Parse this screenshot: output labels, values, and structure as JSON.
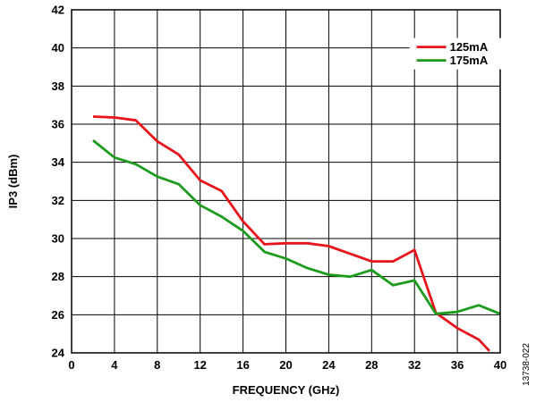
{
  "chart_data": {
    "type": "line",
    "title": "",
    "xlabel": "FREQUENCY (GHz)",
    "ylabel": "IP3 (dBm)",
    "xlim": [
      0,
      40
    ],
    "ylim": [
      24,
      42
    ],
    "xticks": [
      0,
      4,
      8,
      12,
      16,
      20,
      24,
      28,
      32,
      36,
      40
    ],
    "yticks": [
      24,
      26,
      28,
      30,
      32,
      34,
      36,
      38,
      40,
      42
    ],
    "grid": true,
    "legend_position": "top-right",
    "series": [
      {
        "name": "125mA",
        "color": "#e8141b",
        "x": [
          2,
          4,
          6,
          8,
          10,
          12,
          14,
          16,
          18,
          20,
          22,
          24,
          26,
          28,
          30,
          32,
          34,
          36,
          38,
          39
        ],
        "y": [
          36.4,
          36.35,
          36.2,
          35.1,
          34.4,
          33.05,
          32.5,
          30.9,
          29.7,
          29.75,
          29.75,
          29.6,
          29.2,
          28.8,
          28.8,
          29.4,
          26.1,
          25.3,
          24.7,
          24.1
        ]
      },
      {
        "name": "175mA",
        "color": "#1c9b1c",
        "x": [
          2,
          4,
          6,
          8,
          10,
          12,
          14,
          16,
          18,
          20,
          22,
          24,
          26,
          28,
          30,
          32,
          34,
          36,
          38,
          40
        ],
        "y": [
          35.15,
          34.25,
          33.9,
          33.25,
          32.85,
          31.75,
          31.15,
          30.4,
          29.3,
          28.95,
          28.45,
          28.1,
          28.0,
          28.35,
          27.55,
          27.8,
          26.05,
          26.15,
          26.5,
          26.05
        ]
      }
    ],
    "annotation": "13738-022"
  }
}
